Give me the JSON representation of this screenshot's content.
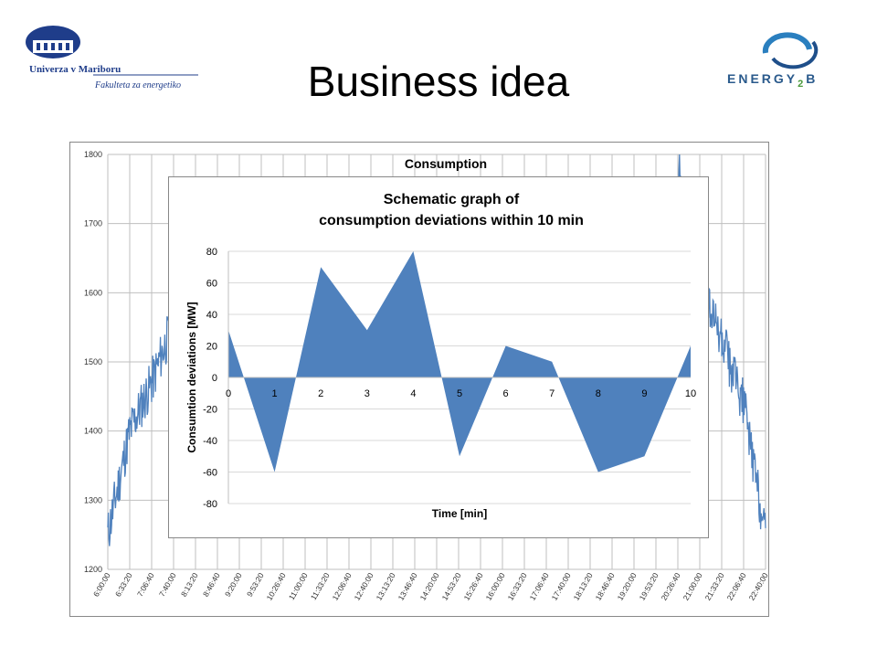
{
  "slide": {
    "title": "Business idea"
  },
  "logos": {
    "left_line1": "Univerza v Mariboru",
    "left_line2": "Fakulteta za energetiko",
    "right_text": "ENERGY",
    "right_sub": "2",
    "right_tail": "B"
  },
  "colors": {
    "series": "#4f81bd",
    "grid": "#bfbfbf",
    "frame": "#888888"
  },
  "chart_data": [
    {
      "type": "line",
      "title": "Consumption",
      "ylim": [
        1200,
        1800
      ],
      "yticks": [
        1200,
        1300,
        1400,
        1500,
        1600,
        1700,
        1800
      ],
      "grid": true,
      "x": [
        "6:00:00",
        "6:33:20",
        "7:06:40",
        "7:40:00",
        "8:13:20",
        "8:46:40",
        "9:20:00",
        "9:53:20",
        "10:26:40",
        "11:00:00",
        "11:33:20",
        "12:06:40",
        "12:40:00",
        "13:13:20",
        "13:46:40",
        "14:20:00",
        "14:53:20",
        "15:26:40",
        "16:00:00",
        "16:33:20",
        "17:06:40",
        "17:40:00",
        "18:13:20",
        "18:46:40",
        "19:20:00",
        "19:53:20",
        "20:26:40",
        "21:00:00",
        "21:33:20",
        "22:06:40",
        "22:40:00"
      ],
      "series": [
        {
          "values": [
            1250,
            1400,
            1470,
            1560,
            1660,
            null,
            null,
            null,
            null,
            null,
            null,
            null,
            null,
            null,
            null,
            null,
            null,
            null,
            null,
            null,
            null,
            null,
            null,
            null,
            null,
            null,
            1780,
            1620,
            1530,
            1440,
            1250
          ]
        }
      ]
    },
    {
      "type": "area",
      "title": "Schematic graph of consumption deviations within 10 min",
      "xlabel": "Time [min]",
      "ylabel": "Consumtion deviations [MW]",
      "ylim": [
        -80,
        80
      ],
      "yticks": [
        -80,
        -60,
        -40,
        -20,
        0,
        20,
        40,
        60,
        80
      ],
      "x": [
        0,
        1,
        2,
        3,
        4,
        5,
        6,
        7,
        8,
        9,
        10
      ],
      "series": [
        {
          "values": [
            30,
            -60,
            70,
            30,
            80,
            -50,
            20,
            10,
            -60,
            -50,
            20
          ]
        }
      ],
      "grid": true
    }
  ]
}
